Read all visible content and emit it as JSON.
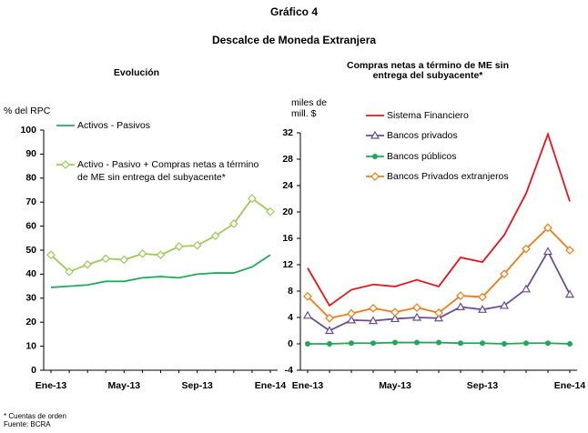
{
  "header": {
    "title": "Gráfico 4",
    "subtitle": "Descalce de Moneda Extranjera"
  },
  "chart_data": [
    {
      "type": "line",
      "title": "Evolución",
      "y_label": "% del RPC",
      "categories": [
        "Ene-13",
        null,
        null,
        null,
        "May-13",
        null,
        null,
        null,
        "Sep-13",
        null,
        null,
        null,
        "Ene-14"
      ],
      "series": [
        {
          "name": "Activos - Pasivos",
          "color": "#1fad5b",
          "marker": "none",
          "values": [
            34.5,
            35,
            35.5,
            37,
            37,
            38.5,
            39,
            38.5,
            40,
            40.5,
            40.5,
            43,
            48
          ]
        },
        {
          "name": [
            "Activo - Pasivo + Compras netas a término",
            "de ME sin entrega del subyacente*"
          ],
          "color": "#9bcc58",
          "marker": "diamond",
          "values": [
            48,
            41,
            44,
            46.5,
            46,
            48.5,
            48,
            51.5,
            52,
            56,
            61,
            71.5,
            66
          ]
        }
      ],
      "ylim": [
        0,
        100
      ],
      "yticks": [
        0,
        10,
        20,
        30,
        40,
        50,
        60,
        70,
        80,
        90,
        100
      ],
      "legend": "upper left"
    },
    {
      "type": "line",
      "title": [
        "Compras netas a término de ME sin",
        "entrega del subyacente*"
      ],
      "y_label": [
        "miles de",
        "mill. $"
      ],
      "categories": [
        "Ene-13",
        null,
        null,
        null,
        "May-13",
        null,
        null,
        null,
        "Sep-13",
        null,
        null,
        null,
        "Ene-14"
      ],
      "series": [
        {
          "name": "Sistema Financiero",
          "color": "#e8141c",
          "marker": "none",
          "values": [
            11.5,
            5.8,
            8.2,
            9,
            8.7,
            9.7,
            8.7,
            13.1,
            12.4,
            16.5,
            22.8,
            31.8,
            21.6
          ]
        },
        {
          "name": "Bancos privados",
          "color": "#6a4c93",
          "marker": "triangle",
          "values": [
            4.3,
            2,
            3.6,
            3.5,
            3.8,
            4,
            3.9,
            5.6,
            5.2,
            5.8,
            8.3,
            14,
            7.5
          ]
        },
        {
          "name": "Bancos públicos",
          "color": "#1ea85a",
          "marker": "circle",
          "values": [
            0,
            0,
            0.1,
            0.1,
            0.2,
            0.2,
            0.2,
            0.1,
            0.1,
            0,
            0.1,
            0.1,
            0
          ]
        },
        {
          "name": "Bancos Privados extranjeros",
          "color": "#f07b16",
          "marker": "diamond",
          "values": [
            7.2,
            3.9,
            4.6,
            5.4,
            4.8,
            5.5,
            4.7,
            7.3,
            7.1,
            10.6,
            14.4,
            17.6,
            14.2
          ]
        }
      ],
      "ylim": [
        -4,
        32
      ],
      "yticks": [
        -4,
        0,
        4,
        8,
        12,
        16,
        20,
        24,
        28,
        32
      ],
      "legend": "upper left"
    }
  ],
  "footnotes": [
    "* Cuentas de orden",
    "Fuente: BCRA"
  ]
}
